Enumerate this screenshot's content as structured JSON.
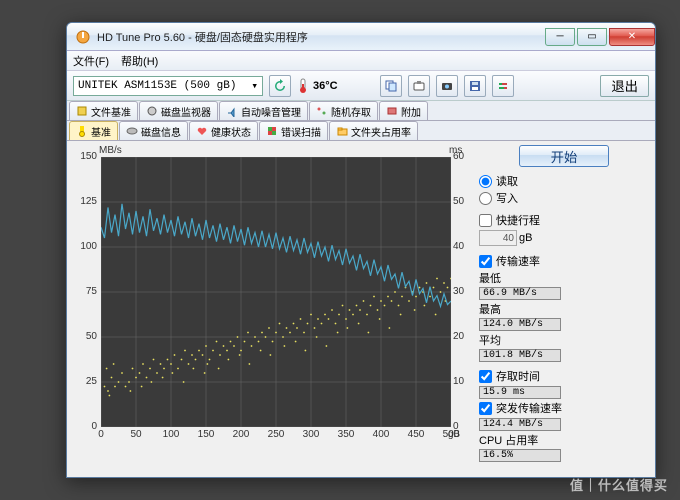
{
  "window": {
    "title": "HD Tune Pro 5.60 - 硬盘/固态硬盘实用程序"
  },
  "menu": {
    "file": "文件(F)",
    "help": "帮助(H)"
  },
  "toolbar": {
    "drive": "UNITEK ASM1153E (500 gB)",
    "temp": "36°C",
    "exit": "退出"
  },
  "tabs_top": [
    "文件基准",
    "磁盘监视器",
    "自动噪音管理",
    "随机存取",
    "附加"
  ],
  "tabs_bottom": [
    "基准",
    "磁盘信息",
    "健康状态",
    "错误扫描",
    "文件夹占用率"
  ],
  "buttons": {
    "start": "开始"
  },
  "options": {
    "read": "读取",
    "write": "写入",
    "shortstroke": "快捷行程",
    "shortstroke_val": "40",
    "shortstroke_unit": "gB",
    "transfer": "传输速率",
    "access": "存取时间",
    "burst": "突发传输速率",
    "cpu": "CPU 占用率"
  },
  "stats": {
    "min_lbl": "最低",
    "min_val": "66.9 MB/s",
    "max_lbl": "最高",
    "max_val": "124.0 MB/s",
    "avg_lbl": "平均",
    "avg_val": "101.8 MB/s",
    "access_val": "15.9 ms",
    "burst_val": "124.4 MB/s",
    "cpu_val": "16.5%"
  },
  "chart": {
    "y_left_label": "MB/s",
    "y_right_label": "ms",
    "x_unit": "gB",
    "y_left": {
      "min": 0,
      "max": 150,
      "step": 25
    },
    "y_right": {
      "min": 0,
      "max": 60,
      "step": 10
    },
    "x": {
      "min": 0,
      "max": 500,
      "step": 50
    },
    "bg": "#3a3a3a",
    "grid": "#6b6b6b",
    "line_color": "#4aa8c9",
    "scatter_color": "#e8e060",
    "line": [
      [
        0,
        111
      ],
      [
        5,
        105
      ],
      [
        10,
        122
      ],
      [
        15,
        108
      ],
      [
        20,
        118
      ],
      [
        25,
        106
      ],
      [
        30,
        124
      ],
      [
        35,
        110
      ],
      [
        40,
        119
      ],
      [
        45,
        107
      ],
      [
        50,
        120
      ],
      [
        55,
        108
      ],
      [
        60,
        117
      ],
      [
        65,
        106
      ],
      [
        70,
        121
      ],
      [
        75,
        109
      ],
      [
        80,
        116
      ],
      [
        85,
        107
      ],
      [
        90,
        118
      ],
      [
        95,
        108
      ],
      [
        100,
        115
      ],
      [
        105,
        106
      ],
      [
        110,
        117
      ],
      [
        115,
        107
      ],
      [
        120,
        114
      ],
      [
        125,
        105
      ],
      [
        130,
        116
      ],
      [
        135,
        106
      ],
      [
        140,
        113
      ],
      [
        145,
        104
      ],
      [
        150,
        115
      ],
      [
        155,
        105
      ],
      [
        160,
        112
      ],
      [
        165,
        103
      ],
      [
        170,
        113
      ],
      [
        175,
        104
      ],
      [
        180,
        111
      ],
      [
        185,
        102
      ],
      [
        190,
        112
      ],
      [
        195,
        103
      ],
      [
        200,
        110
      ],
      [
        205,
        101
      ],
      [
        210,
        111
      ],
      [
        215,
        102
      ],
      [
        220,
        108
      ],
      [
        225,
        100
      ],
      [
        230,
        109
      ],
      [
        235,
        100
      ],
      [
        240,
        107
      ],
      [
        245,
        99
      ],
      [
        250,
        108
      ],
      [
        255,
        99
      ],
      [
        260,
        105
      ],
      [
        265,
        97
      ],
      [
        270,
        106
      ],
      [
        275,
        98
      ],
      [
        280,
        104
      ],
      [
        285,
        96
      ],
      [
        290,
        105
      ],
      [
        295,
        97
      ],
      [
        300,
        102
      ],
      [
        305,
        94
      ],
      [
        310,
        103
      ],
      [
        315,
        95
      ],
      [
        320,
        100
      ],
      [
        325,
        92
      ],
      [
        330,
        101
      ],
      [
        335,
        93
      ],
      [
        340,
        98
      ],
      [
        345,
        90
      ],
      [
        350,
        99
      ],
      [
        355,
        91
      ],
      [
        360,
        95
      ],
      [
        365,
        87
      ],
      [
        370,
        96
      ],
      [
        375,
        88
      ],
      [
        380,
        92
      ],
      [
        385,
        84
      ],
      [
        390,
        93
      ],
      [
        395,
        85
      ],
      [
        400,
        89
      ],
      [
        405,
        81
      ],
      [
        410,
        90
      ],
      [
        415,
        82
      ],
      [
        420,
        85
      ],
      [
        425,
        77
      ],
      [
        430,
        86
      ],
      [
        435,
        78
      ],
      [
        440,
        81
      ],
      [
        445,
        73
      ],
      [
        450,
        82
      ],
      [
        455,
        74
      ],
      [
        460,
        77
      ],
      [
        465,
        69
      ],
      [
        470,
        78
      ],
      [
        475,
        70
      ],
      [
        480,
        73
      ],
      [
        485,
        67
      ],
      [
        490,
        74
      ],
      [
        495,
        68
      ],
      [
        500,
        70
      ]
    ],
    "scatter": [
      [
        5,
        9
      ],
      [
        10,
        8
      ],
      [
        15,
        11
      ],
      [
        20,
        9
      ],
      [
        25,
        10
      ],
      [
        30,
        12
      ],
      [
        35,
        9
      ],
      [
        8,
        13
      ],
      [
        12,
        7
      ],
      [
        18,
        14
      ],
      [
        40,
        10
      ],
      [
        45,
        13
      ],
      [
        50,
        11
      ],
      [
        55,
        12
      ],
      [
        60,
        14
      ],
      [
        65,
        11
      ],
      [
        70,
        13
      ],
      [
        75,
        15
      ],
      [
        80,
        12
      ],
      [
        85,
        14
      ],
      [
        90,
        13
      ],
      [
        95,
        15
      ],
      [
        100,
        14
      ],
      [
        105,
        16
      ],
      [
        110,
        13
      ],
      [
        115,
        15
      ],
      [
        120,
        17
      ],
      [
        125,
        14
      ],
      [
        130,
        16
      ],
      [
        135,
        15
      ],
      [
        42,
        8
      ],
      [
        58,
        9
      ],
      [
        72,
        10
      ],
      [
        88,
        11
      ],
      [
        102,
        12
      ],
      [
        118,
        10
      ],
      [
        132,
        13
      ],
      [
        148,
        12
      ],
      [
        140,
        17
      ],
      [
        145,
        16
      ],
      [
        150,
        18
      ],
      [
        155,
        15
      ],
      [
        160,
        17
      ],
      [
        165,
        19
      ],
      [
        170,
        16
      ],
      [
        175,
        18
      ],
      [
        180,
        17
      ],
      [
        185,
        19
      ],
      [
        190,
        18
      ],
      [
        195,
        20
      ],
      [
        200,
        17
      ],
      [
        205,
        19
      ],
      [
        210,
        21
      ],
      [
        215,
        18
      ],
      [
        220,
        20
      ],
      [
        225,
        19
      ],
      [
        230,
        21
      ],
      [
        235,
        20
      ],
      [
        152,
        14
      ],
      [
        168,
        13
      ],
      [
        182,
        15
      ],
      [
        198,
        16
      ],
      [
        212,
        14
      ],
      [
        228,
        17
      ],
      [
        242,
        16
      ],
      [
        240,
        22
      ],
      [
        245,
        19
      ],
      [
        250,
        21
      ],
      [
        255,
        23
      ],
      [
        260,
        20
      ],
      [
        265,
        22
      ],
      [
        270,
        21
      ],
      [
        275,
        23
      ],
      [
        280,
        22
      ],
      [
        285,
        24
      ],
      [
        290,
        21
      ],
      [
        295,
        23
      ],
      [
        300,
        25
      ],
      [
        305,
        22
      ],
      [
        310,
        24
      ],
      [
        315,
        23
      ],
      [
        320,
        25
      ],
      [
        325,
        24
      ],
      [
        330,
        26
      ],
      [
        335,
        23
      ],
      [
        262,
        18
      ],
      [
        278,
        19
      ],
      [
        292,
        17
      ],
      [
        308,
        20
      ],
      [
        322,
        18
      ],
      [
        338,
        21
      ],
      [
        340,
        25
      ],
      [
        345,
        27
      ],
      [
        350,
        24
      ],
      [
        355,
        26
      ],
      [
        360,
        25
      ],
      [
        365,
        27
      ],
      [
        370,
        26
      ],
      [
        375,
        28
      ],
      [
        380,
        25
      ],
      [
        385,
        27
      ],
      [
        390,
        29
      ],
      [
        395,
        26
      ],
      [
        400,
        28
      ],
      [
        405,
        27
      ],
      [
        410,
        29
      ],
      [
        415,
        28
      ],
      [
        420,
        30
      ],
      [
        425,
        27
      ],
      [
        430,
        29
      ],
      [
        435,
        31
      ],
      [
        352,
        22
      ],
      [
        368,
        23
      ],
      [
        382,
        21
      ],
      [
        398,
        24
      ],
      [
        412,
        22
      ],
      [
        428,
        25
      ],
      [
        440,
        28
      ],
      [
        445,
        30
      ],
      [
        450,
        29
      ],
      [
        455,
        31
      ],
      [
        460,
        30
      ],
      [
        465,
        32
      ],
      [
        470,
        29
      ],
      [
        475,
        31
      ],
      [
        480,
        33
      ],
      [
        485,
        30
      ],
      [
        490,
        32
      ],
      [
        495,
        31
      ],
      [
        500,
        33
      ],
      [
        448,
        26
      ],
      [
        462,
        27
      ],
      [
        478,
        25
      ],
      [
        492,
        28
      ]
    ]
  },
  "watermark": "值｜什么值得买"
}
